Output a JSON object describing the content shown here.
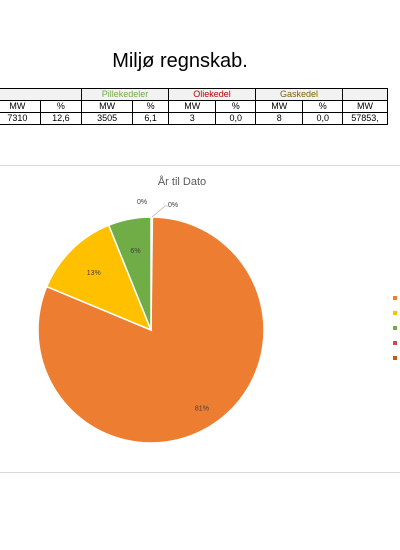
{
  "page": {
    "title": "Miljø regnskab."
  },
  "table": {
    "groups": [
      {
        "label": "",
        "color": "#e2c12a"
      },
      {
        "label": "Pillekedeler",
        "color": "#70ad47"
      },
      {
        "label": "Oliekedel",
        "color": "#c00000"
      },
      {
        "label": "Gaskedel",
        "color": "#7f6000"
      },
      {
        "label": "",
        "color": "#000000"
      }
    ],
    "header": [
      "MW",
      "%",
      "MW",
      "%",
      "MW",
      "%",
      "MW",
      "%",
      "MW"
    ],
    "values": [
      "7310",
      "12,6",
      "3505",
      "6,1",
      "3",
      "0,0",
      "8",
      "0,0",
      "57853,"
    ]
  },
  "chart_data": {
    "type": "pie",
    "title": "År til Dato",
    "slices": [
      {
        "label": "81%",
        "value": 81,
        "color": "#ed7d31"
      },
      {
        "label": "13%",
        "value": 12.6,
        "color": "#ffc000"
      },
      {
        "label": "6%",
        "value": 6.1,
        "color": "#70ad47"
      },
      {
        "label": "0%",
        "value": 0.1,
        "color": "#c0504d"
      },
      {
        "label": "0%",
        "value": 0.1,
        "color": "#c55a11"
      }
    ],
    "legend": {
      "position": "right"
    }
  }
}
